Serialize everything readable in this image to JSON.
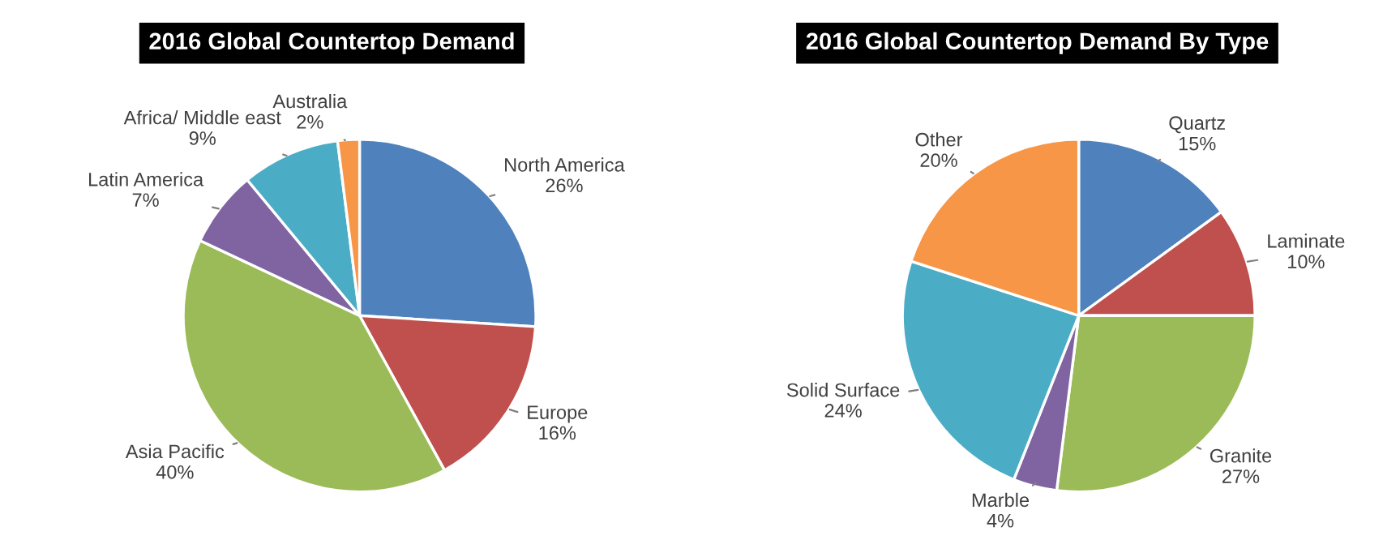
{
  "chart_data": [
    {
      "type": "pie",
      "title": "2016 Global Countertop Demand",
      "categories": [
        "North America",
        "Europe",
        "Asia Pacific",
        "Latin America",
        "Africa/ Middle east",
        "Australia"
      ],
      "values": [
        26,
        16,
        40,
        7,
        9,
        2
      ],
      "value_labels": [
        "26%",
        "16%",
        "40%",
        "7%",
        "9%",
        "2%"
      ],
      "colors": [
        "#4f81bd",
        "#c0504d",
        "#9bbb59",
        "#8064a2",
        "#4bacc6",
        "#f79646"
      ],
      "legend": false
    },
    {
      "type": "pie",
      "title": "2016 Global Countertop Demand By Type",
      "categories": [
        "Quartz",
        "Laminate",
        "Granite",
        "Marble",
        "Solid Surface",
        "Other"
      ],
      "values": [
        15,
        10,
        27,
        4,
        24,
        20
      ],
      "value_labels": [
        "15%",
        "10%",
        "27%",
        "4%",
        "24%",
        "20%"
      ],
      "colors": [
        "#4f81bd",
        "#c0504d",
        "#9bbb59",
        "#8064a2",
        "#4bacc6",
        "#f79646"
      ],
      "legend": false
    }
  ]
}
